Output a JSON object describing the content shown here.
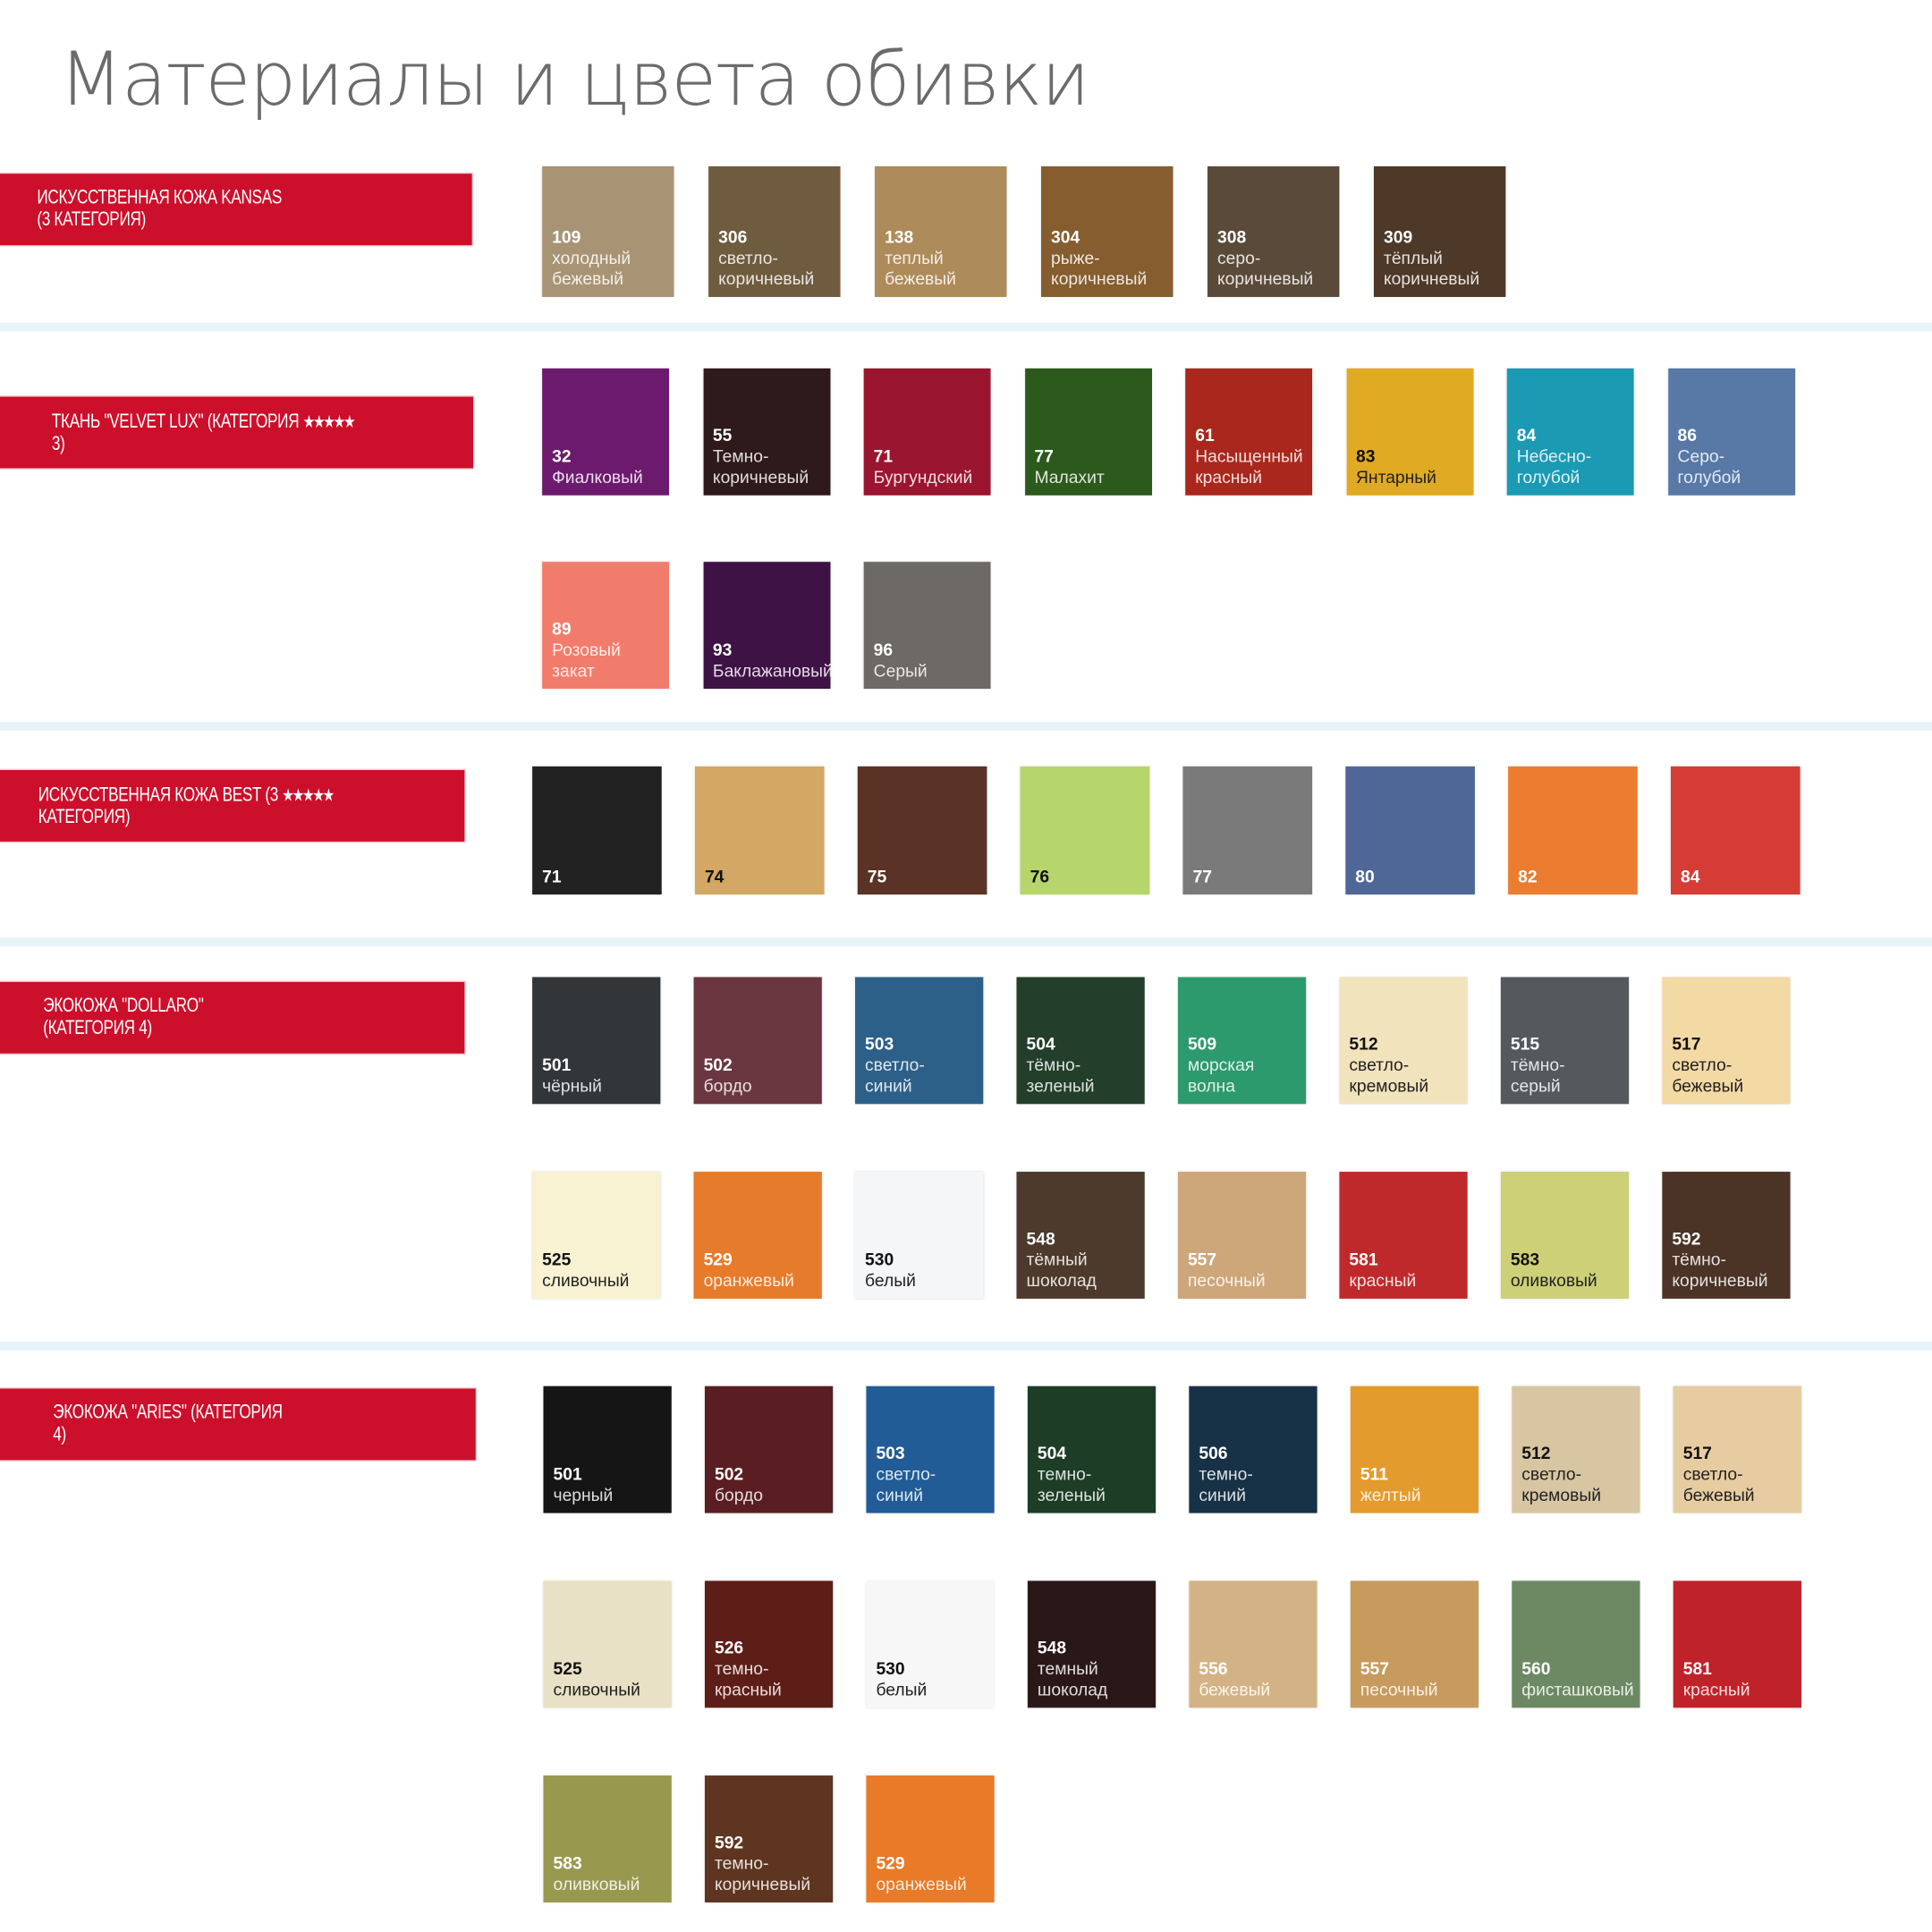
{
  "title": "Материалы и цвета обивки",
  "colors": {
    "label_bg": "#cc0f2b",
    "separator": "#e6f3f8",
    "title": "#6b6b6b"
  },
  "sections": [
    {
      "label_line1": "ИСКУССТВЕННАЯ КОЖА KANSAS",
      "label_line2": "(3 КАТЕГОРИЯ)",
      "stars": "",
      "rows": [
        [
          {
            "code": "109",
            "name": "холодный\nбежевый",
            "color": "#a89474"
          },
          {
            "code": "306",
            "name": "светло-\nкоричневый",
            "color": "#6f5b3e"
          },
          {
            "code": "138",
            "name": "теплый\nбежевый",
            "color": "#ad8b5a"
          },
          {
            "code": "304",
            "name": "рыже-\nкоричневый",
            "color": "#855d2e"
          },
          {
            "code": "308",
            "name": "серо-\nкоричневый",
            "color": "#5a4a3a"
          },
          {
            "code": "309",
            "name": "тёплый\nкоричневый",
            "color": "#4e3828"
          }
        ]
      ]
    },
    {
      "label_line1": "ТКАНЬ \"VELVET LUX\" (КАТЕГОРИЯ",
      "label_line2": "3)",
      "stars": "★★★★★",
      "rows": [
        [
          {
            "code": "32",
            "name": "Фиалковый",
            "color": "#6c1a6e"
          },
          {
            "code": "55",
            "name": "Темно-\nкоричневый",
            "color": "#2e1a1a"
          },
          {
            "code": "71",
            "name": "Бургундский",
            "color": "#9a1530"
          },
          {
            "code": "77",
            "name": "Малахит",
            "color": "#2b5a1c"
          },
          {
            "code": "61",
            "name": "Насыщенный\nкрасный",
            "color": "#a9271c"
          },
          {
            "code": "83",
            "name": "Янтарный",
            "color": "#e0aa22",
            "dark": true
          },
          {
            "code": "84",
            "name": "Небесно-\nголубой",
            "color": "#1c9ab3"
          },
          {
            "code": "86",
            "name": "Серо-\nголубой",
            "color": "#5878a6"
          }
        ],
        [
          {
            "code": "89",
            "name": "Розовый закат",
            "color": "#f27c6c"
          },
          {
            "code": "93",
            "name": "Баклажановый",
            "color": "#3e1245"
          },
          {
            "code": "96",
            "name": "Серый",
            "color": "#6d6964"
          }
        ]
      ]
    },
    {
      "label_line1": "ИСКУССТВЕННАЯ КОЖА BEST (3",
      "label_line2": "КАТЕГОРИЯ)",
      "stars": "★★★★★",
      "rows": [
        [
          {
            "code": "71",
            "name": "",
            "color": "#222222"
          },
          {
            "code": "74",
            "name": "",
            "color": "#d3a764",
            "dark": true
          },
          {
            "code": "75",
            "name": "",
            "color": "#5a3226"
          },
          {
            "code": "76",
            "name": "",
            "color": "#b6d56a",
            "dark": true
          },
          {
            "code": "77",
            "name": "",
            "color": "#7a7a7a"
          },
          {
            "code": "80",
            "name": "",
            "color": "#4f6797"
          },
          {
            "code": "82",
            "name": "",
            "color": "#ec7c30"
          },
          {
            "code": "84",
            "name": "",
            "color": "#d63c36"
          }
        ]
      ]
    },
    {
      "label_line1": "ЭКОКОЖА \"DOLLARO\"",
      "label_line2": "(КАТЕГОРИЯ 4)",
      "stars": "",
      "rows": [
        [
          {
            "code": "501",
            "name": "чёрный",
            "color": "#333638"
          },
          {
            "code": "502",
            "name": "бордо",
            "color": "#6a3740"
          },
          {
            "code": "503",
            "name": "светло-\nсиний",
            "color": "#2d6089"
          },
          {
            "code": "504",
            "name": "тёмно-\nзеленый",
            "color": "#233f2b"
          },
          {
            "code": "509",
            "name": "морская\nволна",
            "color": "#2c9a6c"
          },
          {
            "code": "512",
            "name": "светло-\nкремовый",
            "color": "#f1e3bc",
            "dark": true
          },
          {
            "code": "515",
            "name": "тёмно-\nсерый",
            "color": "#55595d"
          },
          {
            "code": "517",
            "name": "светло-\nбежевый",
            "color": "#f3d9a4",
            "dark": true
          }
        ],
        [
          {
            "code": "525",
            "name": "сливочный",
            "color": "#f8f2d2",
            "dark": true
          },
          {
            "code": "529",
            "name": "оранжевый",
            "color": "#e67b2b"
          },
          {
            "code": "530",
            "name": "белый",
            "color": "#f5f6f8",
            "dark": true
          },
          {
            "code": "548",
            "name": "тёмный\nшоколад",
            "color": "#4d3a2c"
          },
          {
            "code": "557",
            "name": "песочный",
            "color": "#cda77a"
          },
          {
            "code": "581",
            "name": "красный",
            "color": "#c0292c"
          },
          {
            "code": "583",
            "name": "оливковый",
            "color": "#cdd077",
            "dark": true
          },
          {
            "code": "592",
            "name": "тёмно-\nкоричневый",
            "color": "#4b3326"
          }
        ]
      ]
    },
    {
      "label_line1": "ЭКОКОЖА \"ARIES\" (КАТЕГОРИЯ",
      "label_line2": "4)",
      "stars": "",
      "rows": [
        [
          {
            "code": "501",
            "name": "черный",
            "color": "#151515"
          },
          {
            "code": "502",
            "name": "бордо",
            "color": "#5a1e22"
          },
          {
            "code": "503",
            "name": "светло-\nсиний",
            "color": "#215c96"
          },
          {
            "code": "504",
            "name": "темно-\nзеленый",
            "color": "#1d3d26"
          },
          {
            "code": "506",
            "name": "темно-\nсиний",
            "color": "#173147"
          },
          {
            "code": "511",
            "name": "желтый",
            "color": "#e39b2d"
          },
          {
            "code": "512",
            "name": "светло-\nкремовый",
            "color": "#d8c6a2",
            "dark": true
          },
          {
            "code": "517",
            "name": "светло-\nбежевый",
            "color": "#e6cca0",
            "dark": true
          }
        ],
        [
          {
            "code": "525",
            "name": "сливочный",
            "color": "#e9e1c5",
            "dark": true
          },
          {
            "code": "526",
            "name": "темно-\nкрасный",
            "color": "#5e1e18"
          },
          {
            "code": "530",
            "name": "белый",
            "color": "#f7f7f7",
            "dark": true
          },
          {
            "code": "548",
            "name": "темный\nшоколад",
            "color": "#2a1818"
          },
          {
            "code": "556",
            "name": "бежевый",
            "color": "#d3b385"
          },
          {
            "code": "557",
            "name": "песочный",
            "color": "#c79b5e"
          },
          {
            "code": "560",
            "name": "фисташковый",
            "color": "#6c8963"
          },
          {
            "code": "581",
            "name": "красный",
            "color": "#c0222a"
          }
        ],
        [
          {
            "code": "583",
            "name": "оливковый",
            "color": "#98994f"
          },
          {
            "code": "592",
            "name": "темно-\nкоричневый",
            "color": "#5e3520"
          },
          {
            "code": "529",
            "name": "оранжевый",
            "color": "#e87a28"
          }
        ]
      ]
    }
  ]
}
